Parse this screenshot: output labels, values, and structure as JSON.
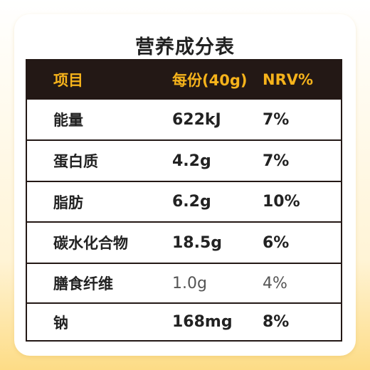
{
  "title": "营养成分表",
  "table": {
    "headers": [
      "项目",
      "每份(40g)",
      "NRV%"
    ],
    "rows": [
      {
        "item": "能量",
        "amount": "622kJ",
        "nrv": "7%"
      },
      {
        "item": "蛋白质",
        "amount": "4.2g",
        "nrv": "7%"
      },
      {
        "item": "脂肪",
        "amount": "6.2g",
        "nrv": "10%"
      },
      {
        "item": "碳水化合物",
        "amount": "18.5g",
        "nrv": "6%"
      },
      {
        "item": "膳食纤维",
        "amount": "1.0g",
        "nrv": "4%"
      },
      {
        "item": "钠",
        "amount": "168mg",
        "nrv": "8%"
      }
    ]
  },
  "colors": {
    "header_bg": "#231815",
    "header_text": "#f6b31b",
    "frame": "#fddc86"
  }
}
